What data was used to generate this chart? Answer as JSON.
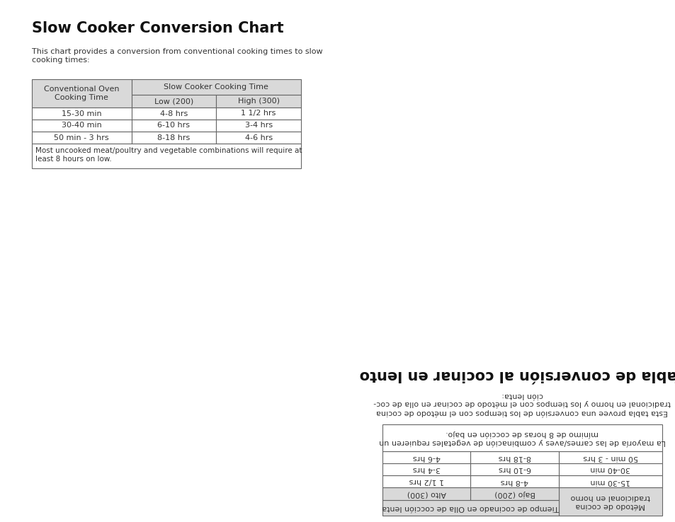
{
  "title_en": "Slow Cooker Conversion Chart",
  "subtitle_en": "This chart provides a conversion from conventional cooking times to slow\ncooking times:",
  "table_header_col1_en": "Conventional Oven\nCooking Time",
  "table_header_span_en": "Slow Cooker Cooking Time",
  "table_subheader_low_en": "Low (200)",
  "table_subheader_high_en": "High (300)",
  "table_rows_en": [
    [
      "15-30 min",
      "4-8 hrs",
      "1 1/2 hrs"
    ],
    [
      "30-40 min",
      "6-10 hrs",
      "3-4 hrs"
    ],
    [
      "50 min - 3 hrs",
      "8-18 hrs",
      "4-6 hrs"
    ]
  ],
  "table_footnote_en": "Most uncooked meat/poultry and vegetable combinations will require at\nleast 8 hours on low.",
  "title_es": "Tabla de conversión al cocinar en lento",
  "subtitle_es": "Esta tabla provee una conversión de los tiempos con el método de cocina\ntradicional en horno y los tiempos con el método de cocinar en olla de coc-\nción lenta:",
  "table_header_col1_es": "Método de cocina\ntradicional en horno",
  "table_header_span_es": "Tiempo de cocinado en Olla de cocción lenta",
  "table_subheader_low_es": "Bajo (200)",
  "table_subheader_high_es": "Alto (300)",
  "table_rows_es": [
    [
      "15-30 min",
      "4-8 hrs",
      "1 1/2 hrs"
    ],
    [
      "30-40 min",
      "6-10 hrs",
      "3-4 hrs"
    ],
    [
      "50 min - 3 hrs",
      "8-18 hrs",
      "4-6 hrs"
    ]
  ],
  "table_footnote_es": "La mayoría de las carnes/aves y combinación de vegetales requieren un\nmínimo de 8 horas de cocción en bajo.",
  "bg_color": "#ffffff",
  "table_header_bg": "#d9d9d9",
  "table_border_color": "#666666",
  "text_color": "#333333",
  "title_fontsize": 15,
  "body_fontsize": 8,
  "table_fontsize": 8
}
